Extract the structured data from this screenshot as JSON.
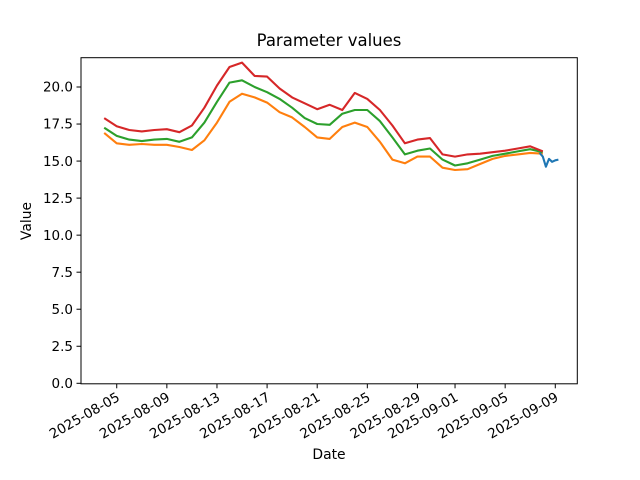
{
  "figure": {
    "title": "Parameter values",
    "xlabel": "Date",
    "ylabel": "Value"
  },
  "chart_data": {
    "type": "line",
    "title": "Parameter values",
    "xlabel": "Date",
    "ylabel": "Value",
    "grid": false,
    "legend": "none",
    "background": "#ffffff",
    "spine_color": "#000000",
    "ylim": [
      0,
      22
    ],
    "xlim_dates": [
      "2025-08-02",
      "2025-09-11"
    ],
    "origin_date": "2025-08-04",
    "x_tick_labels": [
      "2025-08-05",
      "2025-08-09",
      "2025-08-13",
      "2025-08-17",
      "2025-08-21",
      "2025-08-25",
      "2025-08-29",
      "2025-09-01",
      "2025-09-05",
      "2025-09-09"
    ],
    "x_tick_rotation_deg": 30,
    "y_ticks": [
      {
        "label": "0.0",
        "value": 0
      },
      {
        "label": "2.5",
        "value": 2.5
      },
      {
        "label": "5.0",
        "value": 5
      },
      {
        "label": "7.5",
        "value": 7.5
      },
      {
        "label": "10.0",
        "value": 10
      },
      {
        "label": "12.5",
        "value": 12.5
      },
      {
        "label": "15.0",
        "value": 15
      },
      {
        "label": "17.5",
        "value": 17.5
      },
      {
        "label": "20.0",
        "value": 20
      }
    ],
    "dates": [
      "2025-08-04",
      "2025-08-05",
      "2025-08-06",
      "2025-08-07",
      "2025-08-08",
      "2025-08-09",
      "2025-08-10",
      "2025-08-11",
      "2025-08-12",
      "2025-08-13",
      "2025-08-14",
      "2025-08-15",
      "2025-08-16",
      "2025-08-17",
      "2025-08-18",
      "2025-08-19",
      "2025-08-20",
      "2025-08-21",
      "2025-08-22",
      "2025-08-23",
      "2025-08-24",
      "2025-08-25",
      "2025-08-26",
      "2025-08-27",
      "2025-08-28",
      "2025-08-29",
      "2025-08-30",
      "2025-08-31",
      "2025-09-01",
      "2025-09-02",
      "2025-09-03",
      "2025-09-04",
      "2025-09-05",
      "2025-09-06",
      "2025-09-07",
      "2025-09-08"
    ],
    "series": [
      {
        "id": "orange-line",
        "color": "#ff7f0e",
        "values": [
          16.9,
          16.2,
          16.1,
          16.15,
          16.1,
          16.1,
          15.95,
          15.75,
          16.4,
          17.6,
          19.0,
          19.55,
          19.3,
          18.95,
          18.3,
          17.95,
          17.3,
          16.6,
          16.5,
          17.3,
          17.6,
          17.3,
          16.3,
          15.1,
          14.85,
          15.3,
          15.3,
          14.55,
          14.4,
          14.45,
          14.8,
          15.15,
          15.35,
          15.45,
          15.55,
          15.5
        ]
      },
      {
        "id": "green-line",
        "color": "#2ca02c",
        "values": [
          17.25,
          16.7,
          16.45,
          16.35,
          16.45,
          16.5,
          16.3,
          16.6,
          17.6,
          19.0,
          20.3,
          20.45,
          20.0,
          19.65,
          19.2,
          18.6,
          17.9,
          17.5,
          17.45,
          18.2,
          18.45,
          18.45,
          17.7,
          16.6,
          15.45,
          15.7,
          15.85,
          15.1,
          14.7,
          14.85,
          15.1,
          15.35,
          15.5,
          15.65,
          15.8,
          15.6
        ]
      },
      {
        "id": "red-line",
        "color": "#d62728",
        "values": [
          17.9,
          17.35,
          17.1,
          17.0,
          17.1,
          17.15,
          16.95,
          17.4,
          18.6,
          20.1,
          21.35,
          21.65,
          20.75,
          20.7,
          19.9,
          19.3,
          18.9,
          18.5,
          18.8,
          18.45,
          19.6,
          19.2,
          18.45,
          17.4,
          16.2,
          16.45,
          16.55,
          15.45,
          15.3,
          15.45,
          15.5,
          15.6,
          15.7,
          15.85,
          16.0,
          15.65
        ]
      },
      {
        "id": "blue-line",
        "color": "#1f77b4",
        "day_offsets": [
          34.75,
          35.0,
          35.25,
          35.5,
          35.75,
          36.0,
          36.25
        ],
        "values": [
          15.55,
          15.3,
          14.62,
          15.15,
          14.95,
          15.05,
          15.1
        ]
      }
    ]
  }
}
